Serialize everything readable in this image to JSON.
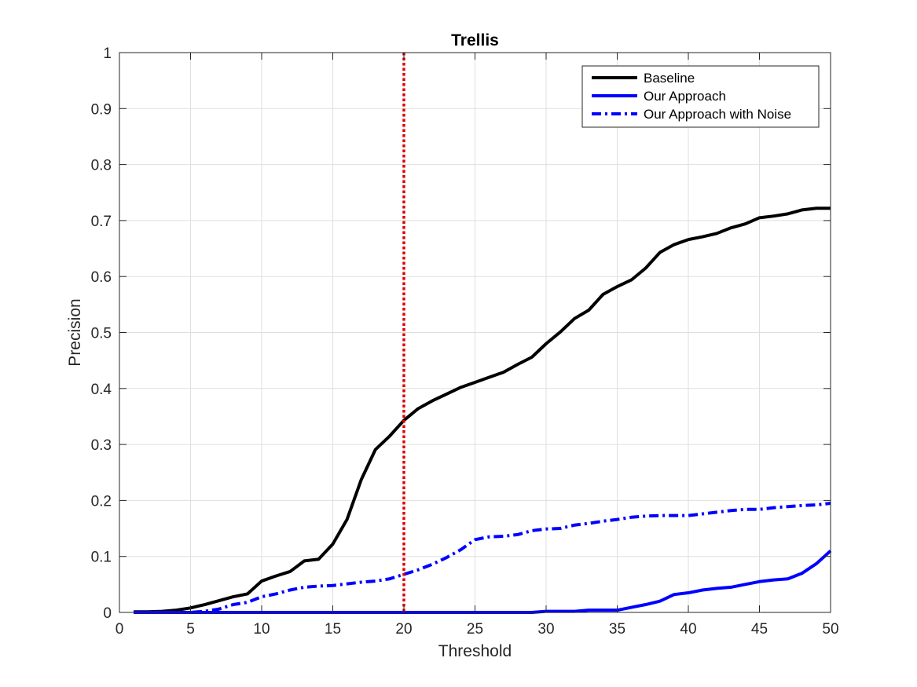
{
  "chart_data": {
    "type": "line",
    "title": "Trellis",
    "xlabel": "Threshold",
    "ylabel": "Precision",
    "xlim": [
      0,
      50
    ],
    "ylim": [
      0,
      1
    ],
    "xticks": [
      0,
      5,
      10,
      15,
      20,
      25,
      30,
      35,
      40,
      45,
      50
    ],
    "yticks": [
      0,
      0.1,
      0.2,
      0.3,
      0.4,
      0.5,
      0.6,
      0.7,
      0.8,
      0.9,
      1
    ],
    "xtick_labels": [
      "0",
      "5",
      "10",
      "15",
      "20",
      "25",
      "30",
      "35",
      "40",
      "45",
      "50"
    ],
    "ytick_labels": [
      "0",
      "0.1",
      "0.2",
      "0.3",
      "0.4",
      "0.5",
      "0.6",
      "0.7",
      "0.8",
      "0.9",
      "1"
    ],
    "grid": true,
    "legend_position": "top-right",
    "reference_line": {
      "x": 20,
      "color": "#e00000",
      "style": "dotted"
    },
    "x": [
      1,
      2,
      3,
      4,
      5,
      6,
      7,
      8,
      9,
      10,
      11,
      12,
      13,
      14,
      15,
      16,
      17,
      18,
      19,
      20,
      21,
      22,
      23,
      24,
      25,
      26,
      27,
      28,
      29,
      30,
      31,
      32,
      33,
      34,
      35,
      36,
      37,
      38,
      39,
      40,
      41,
      42,
      43,
      44,
      45,
      46,
      47,
      48,
      49,
      50
    ],
    "series": [
      {
        "name": "Baseline",
        "color": "#000000",
        "style": "solid",
        "values": [
          0.001,
          0.001,
          0.002,
          0.004,
          0.008,
          0.014,
          0.021,
          0.028,
          0.033,
          0.056,
          0.065,
          0.073,
          0.092,
          0.095,
          0.122,
          0.166,
          0.237,
          0.291,
          0.315,
          0.343,
          0.364,
          0.378,
          0.39,
          0.402,
          0.411,
          0.42,
          0.429,
          0.443,
          0.456,
          0.48,
          0.501,
          0.525,
          0.54,
          0.568,
          0.582,
          0.594,
          0.615,
          0.643,
          0.657,
          0.666,
          0.671,
          0.677,
          0.687,
          0.694,
          0.705,
          0.708,
          0.712,
          0.719,
          0.722,
          0.722
        ]
      },
      {
        "name": "Our Approach",
        "color": "#0000ff",
        "style": "solid",
        "values": [
          0,
          0,
          0,
          0,
          0,
          0,
          0,
          0,
          0,
          0,
          0,
          0,
          0,
          0,
          0,
          0,
          0,
          0,
          0,
          0,
          0,
          0,
          0,
          0,
          0,
          0,
          0,
          0,
          0,
          0.002,
          0.002,
          0.002,
          0.004,
          0.004,
          0.004,
          0.009,
          0.014,
          0.02,
          0.032,
          0.035,
          0.04,
          0.043,
          0.045,
          0.05,
          0.055,
          0.058,
          0.06,
          0.07,
          0.087,
          0.11
        ]
      },
      {
        "name": "Our Approach with Noise",
        "color": "#0000ff",
        "style": "dashdot",
        "values": [
          0,
          0,
          0,
          0,
          0,
          0.002,
          0.006,
          0.014,
          0.018,
          0.028,
          0.033,
          0.04,
          0.045,
          0.047,
          0.048,
          0.051,
          0.054,
          0.056,
          0.06,
          0.068,
          0.076,
          0.086,
          0.098,
          0.112,
          0.13,
          0.135,
          0.136,
          0.139,
          0.146,
          0.149,
          0.15,
          0.156,
          0.159,
          0.163,
          0.166,
          0.17,
          0.172,
          0.173,
          0.173,
          0.173,
          0.176,
          0.179,
          0.182,
          0.184,
          0.184,
          0.187,
          0.189,
          0.191,
          0.192,
          0.195
        ]
      }
    ]
  }
}
